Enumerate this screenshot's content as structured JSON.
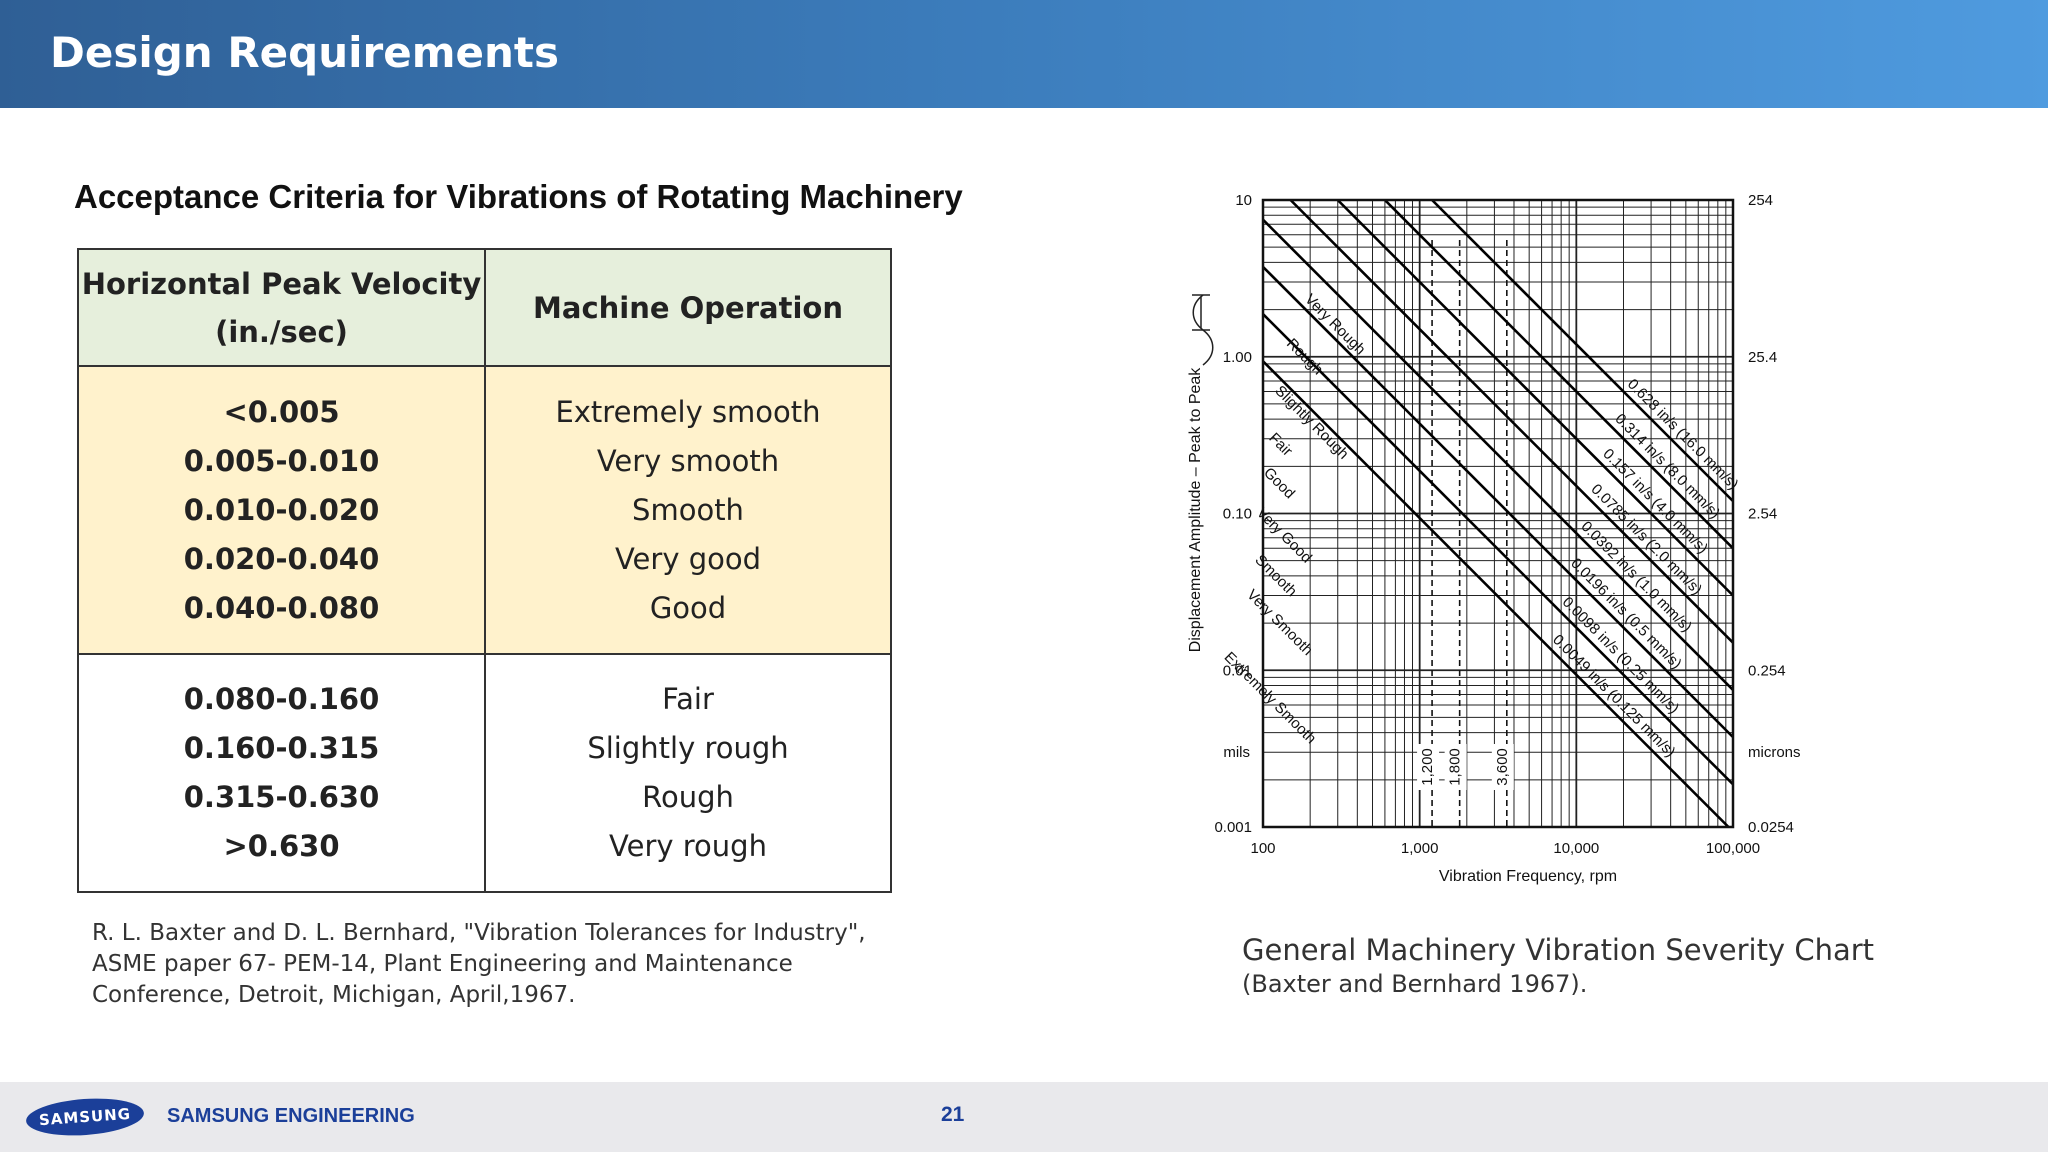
{
  "header": {
    "title": "Design Requirements"
  },
  "section_title": "Acceptance Criteria for Vibrations of Rotating Machinery",
  "table": {
    "col_velocity_line1": "Horizontal Peak Velocity",
    "col_velocity_line2": "(in./sec)",
    "col_operation": "Machine Operation",
    "band_a": [
      {
        "velocity": "<0.005",
        "operation": "Extremely smooth"
      },
      {
        "velocity": "0.005-0.010",
        "operation": "Very smooth"
      },
      {
        "velocity": "0.010-0.020",
        "operation": "Smooth"
      },
      {
        "velocity": "0.020-0.040",
        "operation": "Very good"
      },
      {
        "velocity": "0.040-0.080",
        "operation": "Good"
      }
    ],
    "band_b": [
      {
        "velocity": "0.080-0.160",
        "operation": "Fair"
      },
      {
        "velocity": "0.160-0.315",
        "operation": "Slightly rough"
      },
      {
        "velocity": "0.315-0.630",
        "operation": "Rough"
      },
      {
        "velocity": ">0.630",
        "operation": "Very rough"
      }
    ],
    "band_a_color": "#fff2cc",
    "header_color": "#e6efdc"
  },
  "reference": [
    "R. L. Baxter and D. L. Bernhard, \"Vibration Tolerances for Industry\",",
    "ASME paper 67- PEM-14, Plant Engineering and Maintenance",
    "Conference, Detroit, Michigan, April,1967."
  ],
  "chart_data": {
    "type": "line",
    "xscale": "log",
    "yscale": "log",
    "xlim": [
      100,
      100000
    ],
    "ylim": [
      0.001,
      10
    ],
    "xlabel": "Vibration Frequency, rpm",
    "ylabel": "Displacement Amplitude – Peak to Peak",
    "x_ticks": [
      "100",
      "1,000",
      "10,000",
      "100,000"
    ],
    "y_ticks_left": [
      "10",
      "1.00",
      "0.10",
      "0.01",
      "0.001"
    ],
    "y_unit_left": "mils",
    "y_ticks_right": [
      "254",
      "25.4",
      "2.54",
      "0.254",
      "0.0254"
    ],
    "y_unit_right": "microns",
    "grid": true,
    "vertical_markers": [
      {
        "x": 1200,
        "label": "1,200"
      },
      {
        "x": 1800,
        "label": "1,800"
      },
      {
        "x": 3600,
        "label": "3,600"
      }
    ],
    "velocity_lines_in_per_s": [
      0.628,
      0.314,
      0.157,
      0.0785,
      0.0392,
      0.0196,
      0.0098,
      0.0049
    ],
    "velocity_labels": [
      "0.628 in/s (16.0 mm/s)",
      "0.314 in/s (8.0 mm/s)",
      "0.157 in/s (4.0 mm/s)",
      "0.0785 in/s (2.0 mm/s)",
      "0.0392 in/s (1.0 mm/s)",
      "0.0196 in/s (0.5 mm/s)",
      "0.0098 in/s (0.25 mm/s)",
      "0.0049 in/s (0.125 mm/s)"
    ],
    "zones": [
      "Very Rough",
      "Rough",
      "Slightly Rough",
      "Fair",
      "Good",
      "Very Good",
      "Smooth",
      "Very Smooth",
      "Extremely Smooth"
    ]
  },
  "caption": {
    "title": "General Machinery Vibration Severity Chart",
    "subtitle": "(Baxter and Bernhard 1967)."
  },
  "footer": {
    "logo_text": "SAMSUNG",
    "company": "SAMSUNG ENGINEERING",
    "page_number": "21",
    "brand_color": "#1b3f99"
  }
}
